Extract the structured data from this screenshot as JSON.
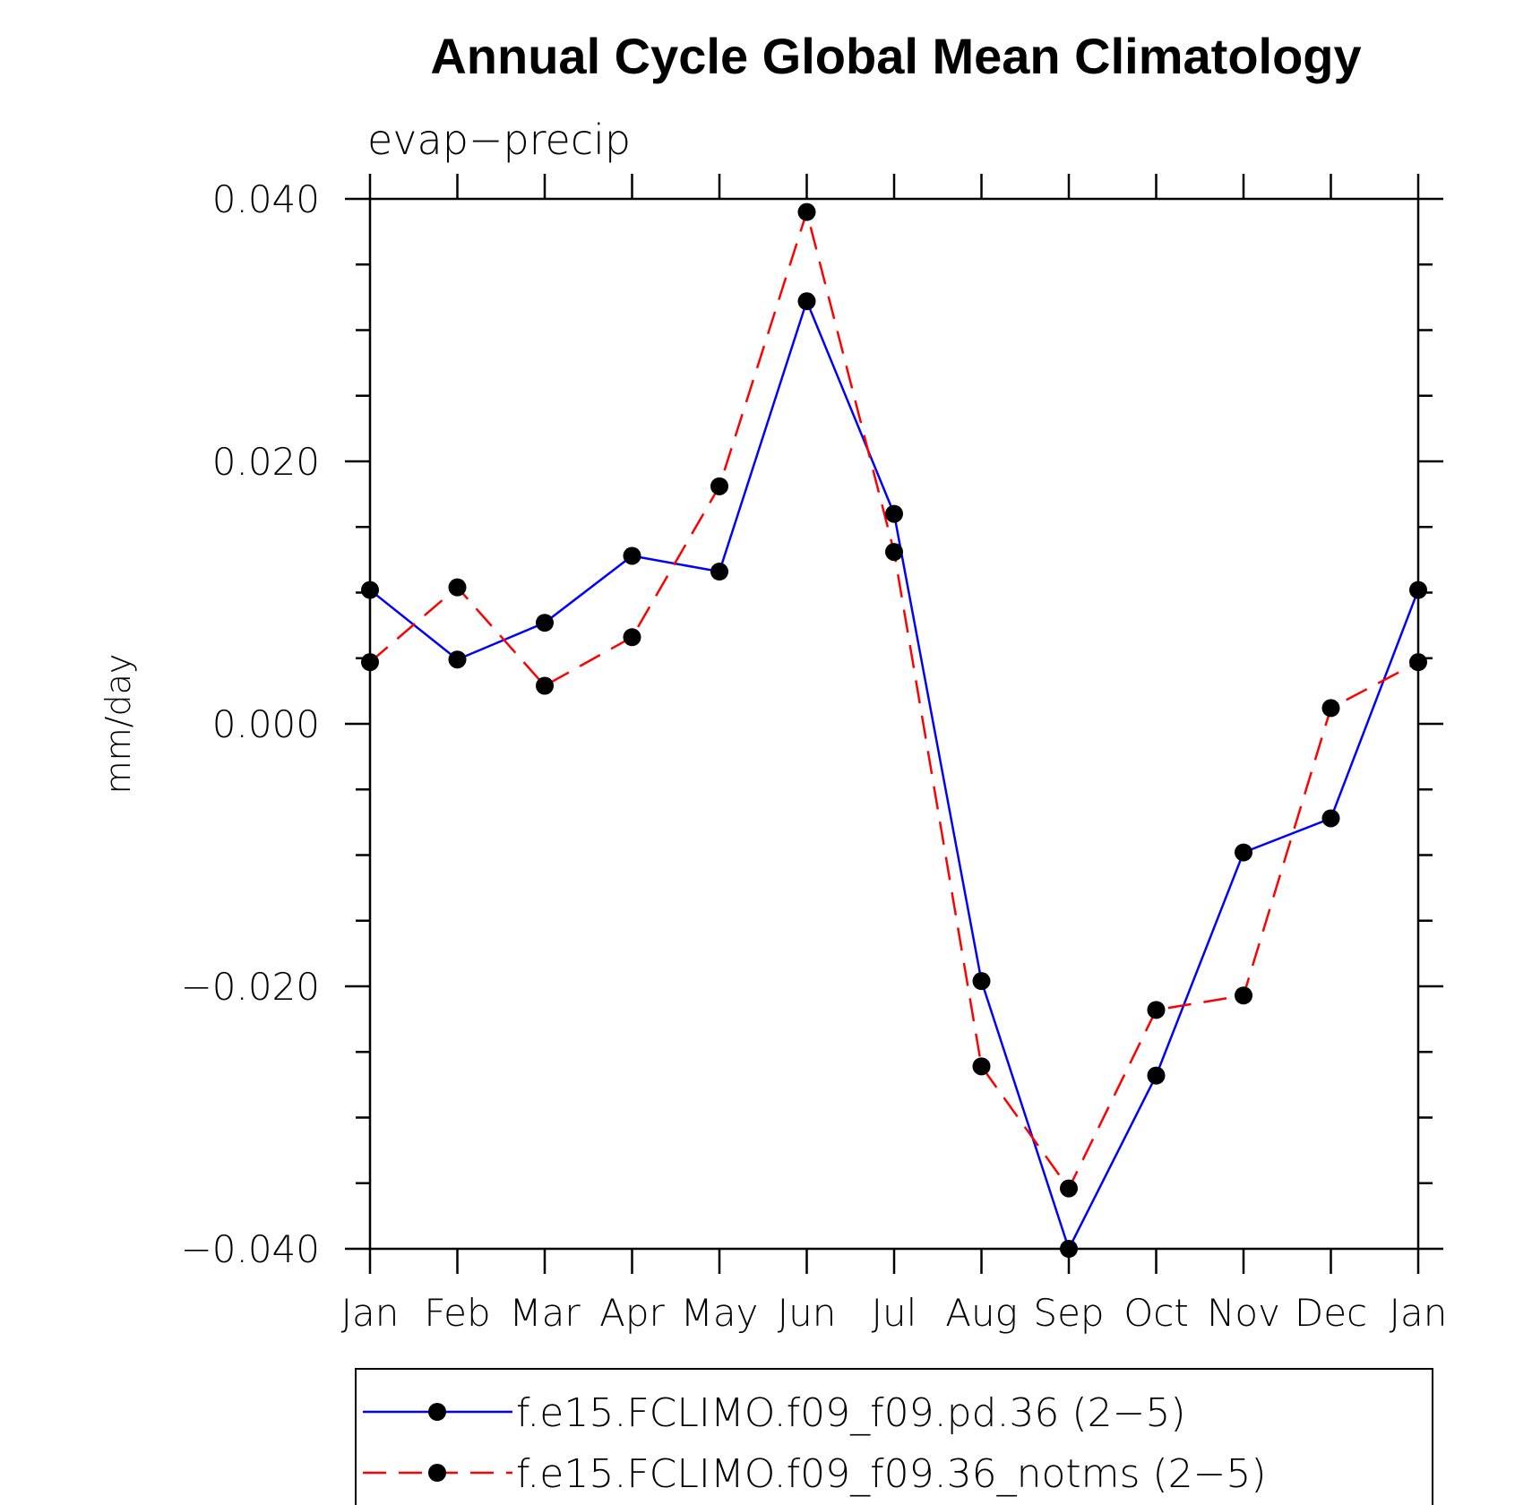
{
  "chart_data": {
    "type": "line",
    "title": "Annual Cycle Global Mean Climatology",
    "subtitle": "evap−precip",
    "ylabel": "mm/day",
    "xlabel": "",
    "categories": [
      "Jan",
      "Feb",
      "Mar",
      "Apr",
      "May",
      "Jun",
      "Jul",
      "Aug",
      "Sep",
      "Oct",
      "Nov",
      "Dec",
      "Jan"
    ],
    "ylim": [
      -0.04,
      0.04
    ],
    "yticks": [
      0.04,
      0.02,
      0.0,
      -0.02,
      -0.04
    ],
    "ytick_labels": [
      "0.040",
      "0.020",
      "0.000",
      "−0.020",
      "−0.040"
    ],
    "grid": false,
    "legend_position": "bottom",
    "series": [
      {
        "name": "f.e15.FCLIMO.f09_f09.pd.36 (2−5)",
        "color": "#0000ff",
        "dash": "solid",
        "marker": "circle",
        "values": [
          0.0102,
          0.0049,
          0.0077,
          0.0128,
          0.0116,
          0.0322,
          0.016,
          -0.0196,
          -0.04,
          -0.0268,
          -0.0098,
          -0.0072,
          0.0102
        ]
      },
      {
        "name": "f.e15.FCLIMO.f09_f09.36_notms (2−5)",
        "color": "#ff0000",
        "dash": "dashed",
        "marker": "circle",
        "values": [
          0.0047,
          0.0104,
          0.0029,
          0.0066,
          0.0181,
          0.039,
          0.0131,
          -0.0261,
          -0.0354,
          -0.0218,
          -0.0207,
          0.0012,
          0.0047
        ]
      }
    ],
    "marker_color": "#000000"
  }
}
